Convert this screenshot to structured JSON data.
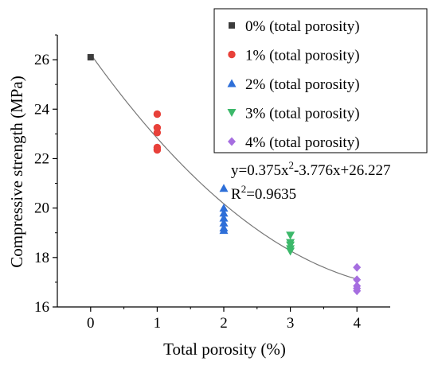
{
  "chart_data": {
    "type": "scatter",
    "xlabel": "Total porosity (%)",
    "ylabel": "Compressive strength (MPa)",
    "xlim": [
      -0.5,
      4.5
    ],
    "ylim": [
      16,
      27
    ],
    "xticks": [
      "0",
      "1",
      "2",
      "3",
      "4"
    ],
    "yticks": [
      "16",
      "18",
      "20",
      "22",
      "24",
      "26"
    ],
    "grid": false,
    "legend_position": "top-right",
    "series": [
      {
        "name": "0% (total porosity)",
        "marker": "square",
        "color": "#3c3c3c",
        "x": [
          0
        ],
        "y": [
          26.1
        ]
      },
      {
        "name": "1% (total porosity)",
        "marker": "circle",
        "color": "#e8413a",
        "x": [
          1,
          1,
          1,
          1,
          1
        ],
        "y": [
          23.8,
          23.25,
          23.05,
          22.45,
          22.35
        ]
      },
      {
        "name": "2% (total porosity)",
        "marker": "triangle-up",
        "color": "#2e6fd8",
        "x": [
          2,
          2,
          2,
          2,
          2,
          2,
          2
        ],
        "y": [
          20.8,
          20.0,
          19.8,
          19.6,
          19.4,
          19.2,
          19.1
        ]
      },
      {
        "name": "3% (total porosity)",
        "marker": "triangle-down",
        "color": "#3cb86a",
        "x": [
          3,
          3,
          3,
          3,
          3
        ],
        "y": [
          18.9,
          18.6,
          18.5,
          18.35,
          18.25
        ]
      },
      {
        "name": "4% (total porosity)",
        "marker": "diamond",
        "color": "#a66ee0",
        "x": [
          4,
          4,
          4,
          4,
          4
        ],
        "y": [
          17.6,
          17.1,
          16.85,
          16.75,
          16.65
        ]
      }
    ],
    "fit": {
      "a": 0.375,
      "b": -3.776,
      "c": 26.227,
      "x_range": [
        0,
        4
      ],
      "color": "#777777"
    },
    "annotations": {
      "equation_lead": "y=0.375x",
      "equation_sup": "2",
      "equation_tail": "-3.776x+26.227",
      "r2_lead": "R",
      "r2_sup": "2",
      "r2_tail": "=0.9635"
    }
  }
}
